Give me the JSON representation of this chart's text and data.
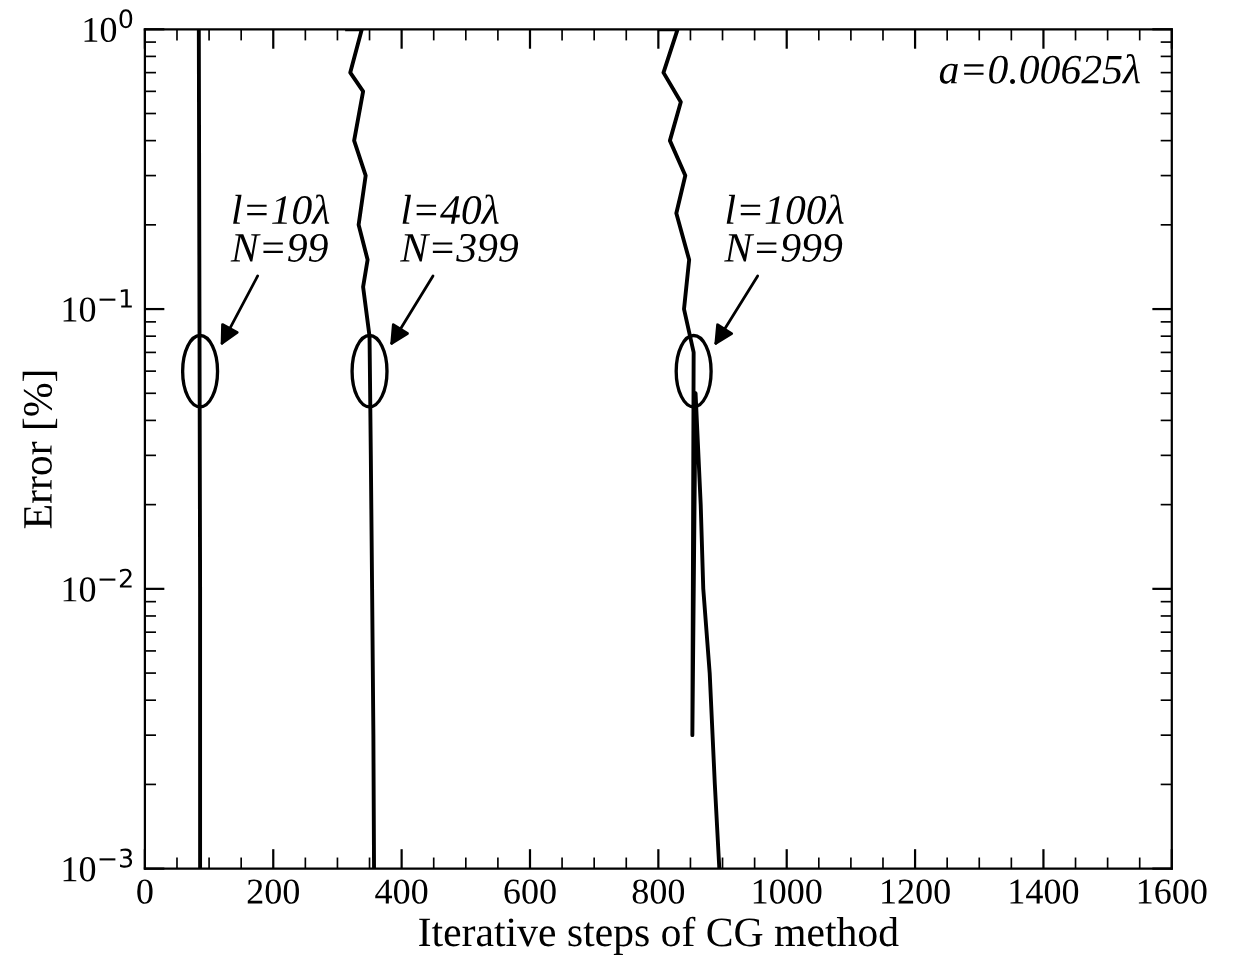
{
  "chart_data": {
    "type": "line",
    "xlabel": "Iterative steps of CG method",
    "ylabel": "Error [%]",
    "log": "y",
    "xlim": [
      0,
      1600
    ],
    "xticks": [
      0,
      200,
      400,
      600,
      800,
      1000,
      1200,
      1400,
      1600
    ],
    "ylim": [
      0.001,
      1
    ],
    "yticks": [
      {
        "value": 0.001,
        "label": "10$^{−3}$"
      },
      {
        "value": 0.01,
        "label": "10$^{−2}$"
      },
      {
        "value": 0.1,
        "label": "10$^{−1}$"
      },
      {
        "value": 1,
        "label": "10$^{0}$"
      }
    ],
    "marker": "none",
    "line_style": "solid",
    "series": [
      {
        "color": "#000000",
        "x": [
          84,
          85,
          86,
          86
        ],
        "values": [
          1,
          0.1,
          0.01,
          0.001
        ]
      },
      {
        "color": "#000000",
        "x": [
          315,
          338,
          320,
          340,
          326,
          344,
          333,
          347,
          340,
          350,
          352,
          354,
          356,
          357
        ],
        "values": [
          1,
          1,
          0.7,
          0.6,
          0.4,
          0.3,
          0.2,
          0.15,
          0.12,
          0.08,
          0.03,
          0.01,
          0.003,
          0.001
        ]
      },
      {
        "color": "#000000",
        "x": [
          803,
          830,
          808,
          835,
          818,
          842,
          828,
          848,
          840,
          855,
          853,
          858,
          866,
          870,
          880,
          888,
          895
        ],
        "values": [
          1,
          1,
          0.7,
          0.55,
          0.4,
          0.3,
          0.22,
          0.15,
          0.1,
          0.07,
          0.003,
          0.05,
          0.02,
          0.01,
          0.005,
          0.002,
          0.001
        ]
      }
    ],
    "annotations": [
      {
        "text": "l=10λ\nN=99",
        "x": 86,
        "y": 0.06
      },
      {
        "text": "l=40λ\nN=399",
        "x": 350,
        "y": 0.06
      },
      {
        "text": "l=100λ\nN=999",
        "x": 855,
        "y": 0.06
      },
      "a=0.00625λ"
    ]
  }
}
